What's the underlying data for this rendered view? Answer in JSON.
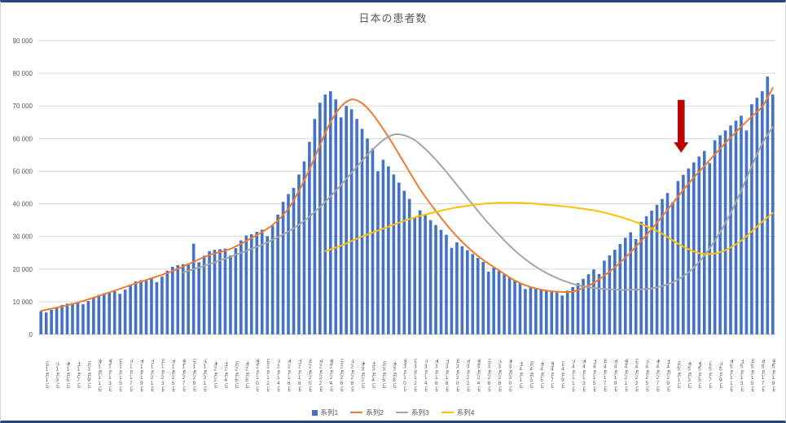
{
  "chart_data": {
    "type": "combo",
    "title": "日本の患者数",
    "ylim": [
      0,
      90000
    ],
    "grid": true,
    "legend_position": "bottom",
    "y_tick_labels": [
      "0",
      "10 000",
      "20 000",
      "30 000",
      "40 000",
      "50 000",
      "60 000",
      "70 000",
      "80 000",
      "90 000"
    ],
    "x_tick_labels": [
      "日1月1日",
      "火1月3日",
      "木1月5日",
      "土1月7日",
      "月1月9日",
      "水1月11日",
      "金1月13日",
      "日1月15日",
      "火1月17日",
      "木1月19日",
      "土1月21日",
      "月1月23日",
      "水1月25日",
      "金1月27日",
      "日1月29日",
      "火1月31日",
      "木2月2日",
      "土2月4日",
      "月2月6日",
      "水2月8日",
      "金2月10日",
      "日2月12日",
      "火2月14日",
      "木2月16日",
      "土2月18日",
      "月2月20日",
      "水2月22日",
      "金2月24日",
      "日2月26日",
      "火2月28日",
      "木3月2日",
      "土3月4日",
      "月3月6日",
      "水3月8日",
      "金3月10日",
      "日3月12日",
      "火3月14日",
      "木3月16日",
      "土3月18日",
      "月3月20日",
      "水3月22日",
      "金3月24日",
      "日3月26日",
      "火3月28日",
      "木3月30日",
      "土4月1日",
      "月4月3日",
      "水4月5日",
      "金4月7日",
      "日4月9日",
      "火4月11日",
      "木4月13日",
      "土4月15日",
      "月4月17日",
      "水4月19日",
      "金4月21日",
      "日4月23日",
      "火4月25日",
      "木4月27日",
      "土4月29日",
      "月5月1日",
      "水5月3日",
      "金5月5日",
      "日5月7日",
      "火5月9日",
      "木5月11日",
      "土5月13日",
      "月5月15日",
      "水5月17日",
      "金5月19日"
    ],
    "days": 140,
    "series": [
      {
        "name": "系列1",
        "type": "bar",
        "color": "#4472C4",
        "values": [
          7000,
          6700,
          7500,
          8400,
          9000,
          9400,
          9600,
          9800,
          9200,
          10200,
          11200,
          12100,
          12600,
          12900,
          13200,
          12400,
          13700,
          15100,
          16200,
          16600,
          16800,
          17200,
          16000,
          17700,
          19500,
          20700,
          21200,
          21500,
          21700,
          27800,
          22100,
          24100,
          25500,
          25900,
          26100,
          26300,
          24200,
          26400,
          28800,
          30300,
          30700,
          31400,
          32100,
          30100,
          33300,
          36700,
          40600,
          43000,
          44900,
          49000,
          53000,
          59000,
          66000,
          71000,
          73500,
          74500,
          72000,
          66500,
          70000,
          69000,
          66000,
          63000,
          60000,
          57000,
          50000,
          53500,
          51500,
          49000,
          46500,
          44000,
          41500,
          36000,
          38000,
          36500,
          35000,
          33500,
          32000,
          30500,
          26500,
          28200,
          27000,
          25800,
          24600,
          23400,
          22200,
          19200,
          20400,
          19400,
          18400,
          17500,
          16600,
          15800,
          13900,
          14600,
          14100,
          13700,
          13300,
          13000,
          12800,
          11900,
          13400,
          14500,
          15700,
          17000,
          18400,
          19900,
          18500,
          22600,
          24200,
          25900,
          27700,
          29600,
          31300,
          29200,
          34500,
          36200,
          37900,
          39700,
          41500,
          43300,
          40500,
          47000,
          48900,
          50800,
          52700,
          54500,
          56200,
          52500,
          59500,
          61000,
          62500,
          64000,
          65500,
          67000,
          62500,
          70500,
          72500,
          74500,
          79000,
          73500
        ]
      },
      {
        "name": "系列2",
        "type": "line",
        "color": "#ED7D31",
        "points": [
          [
            0,
            7200
          ],
          [
            6,
            9300
          ],
          [
            12,
            12300
          ],
          [
            18,
            15600
          ],
          [
            24,
            18800
          ],
          [
            28,
            21500
          ],
          [
            32,
            24300
          ],
          [
            36,
            26200
          ],
          [
            40,
            29500
          ],
          [
            44,
            33500
          ],
          [
            47,
            38500
          ],
          [
            49,
            44000
          ],
          [
            51,
            50500
          ],
          [
            53,
            58000
          ],
          [
            55,
            65000
          ],
          [
            57,
            69800
          ],
          [
            59,
            72000
          ],
          [
            61,
            70800
          ],
          [
            63,
            67500
          ],
          [
            66,
            60500
          ],
          [
            69,
            52500
          ],
          [
            72,
            44500
          ],
          [
            75,
            37800
          ],
          [
            78,
            31800
          ],
          [
            81,
            26800
          ],
          [
            84,
            22800
          ],
          [
            87,
            19600
          ],
          [
            90,
            16500
          ],
          [
            93,
            14500
          ],
          [
            96,
            13400
          ],
          [
            99,
            13000
          ],
          [
            101,
            13100
          ],
          [
            103,
            14200
          ],
          [
            105,
            15800
          ],
          [
            108,
            19200
          ],
          [
            111,
            23500
          ],
          [
            114,
            28600
          ],
          [
            117,
            34200
          ],
          [
            120,
            40200
          ],
          [
            123,
            46200
          ],
          [
            126,
            51600
          ],
          [
            129,
            56900
          ],
          [
            132,
            62000
          ],
          [
            135,
            66800
          ],
          [
            137,
            69800
          ],
          [
            139,
            75500
          ]
        ]
      },
      {
        "name": "系列3",
        "type": "line",
        "color": "#A5A5A5",
        "points": [
          [
            27,
            19000
          ],
          [
            31,
            21000
          ],
          [
            35,
            23200
          ],
          [
            39,
            25600
          ],
          [
            43,
            28200
          ],
          [
            47,
            31500
          ],
          [
            50,
            34800
          ],
          [
            53,
            39000
          ],
          [
            56,
            44000
          ],
          [
            59,
            49500
          ],
          [
            62,
            55000
          ],
          [
            65,
            59500
          ],
          [
            67,
            61200
          ],
          [
            69,
            61000
          ],
          [
            71,
            59500
          ],
          [
            73,
            56800
          ],
          [
            75,
            53500
          ],
          [
            77,
            49800
          ],
          [
            79,
            45800
          ],
          [
            81,
            41800
          ],
          [
            83,
            37800
          ],
          [
            85,
            34000
          ],
          [
            87,
            30500
          ],
          [
            89,
            27200
          ],
          [
            91,
            24300
          ],
          [
            93,
            21800
          ],
          [
            95,
            19700
          ],
          [
            97,
            18000
          ],
          [
            99,
            16600
          ],
          [
            101,
            15500
          ],
          [
            103,
            14700
          ],
          [
            105,
            14200
          ],
          [
            107,
            13900
          ],
          [
            109,
            13700
          ],
          [
            111,
            13600
          ],
          [
            113,
            13700
          ],
          [
            115,
            13900
          ],
          [
            117,
            14400
          ],
          [
            119,
            15300
          ],
          [
            121,
            16800
          ],
          [
            123,
            19000
          ],
          [
            125,
            22200
          ],
          [
            127,
            26300
          ],
          [
            129,
            31300
          ],
          [
            131,
            37200
          ],
          [
            133,
            44000
          ],
          [
            135,
            51500
          ],
          [
            137,
            58500
          ],
          [
            139,
            63500
          ]
        ]
      },
      {
        "name": "系列4",
        "type": "line",
        "color": "#FFC000",
        "points": [
          [
            54,
            25500
          ],
          [
            57,
            27200
          ],
          [
            60,
            29300
          ],
          [
            63,
            31200
          ],
          [
            66,
            33000
          ],
          [
            69,
            34800
          ],
          [
            72,
            36300
          ],
          [
            75,
            37500
          ],
          [
            78,
            38600
          ],
          [
            81,
            39400
          ],
          [
            84,
            40000
          ],
          [
            87,
            40300
          ],
          [
            90,
            40300
          ],
          [
            93,
            40100
          ],
          [
            96,
            39700
          ],
          [
            99,
            39300
          ],
          [
            102,
            38700
          ],
          [
            105,
            38000
          ],
          [
            108,
            36900
          ],
          [
            111,
            35500
          ],
          [
            114,
            33800
          ],
          [
            117,
            31700
          ],
          [
            119,
            29800
          ],
          [
            121,
            27800
          ],
          [
            123,
            26100
          ],
          [
            125,
            24900
          ],
          [
            127,
            24600
          ],
          [
            129,
            25200
          ],
          [
            131,
            26600
          ],
          [
            133,
            28700
          ],
          [
            135,
            31500
          ],
          [
            137,
            34500
          ],
          [
            139,
            37200
          ]
        ]
      }
    ],
    "annotation": {
      "shape": "block-arrow-down",
      "color": "#C00000",
      "day": 121.6,
      "value_top": 71800,
      "value_tip": 55800
    },
    "colors": {
      "gridline": "#D9D9D9",
      "axis_line": "#BFBFBF",
      "text": "#595959",
      "frame_border": "#25477B"
    }
  }
}
